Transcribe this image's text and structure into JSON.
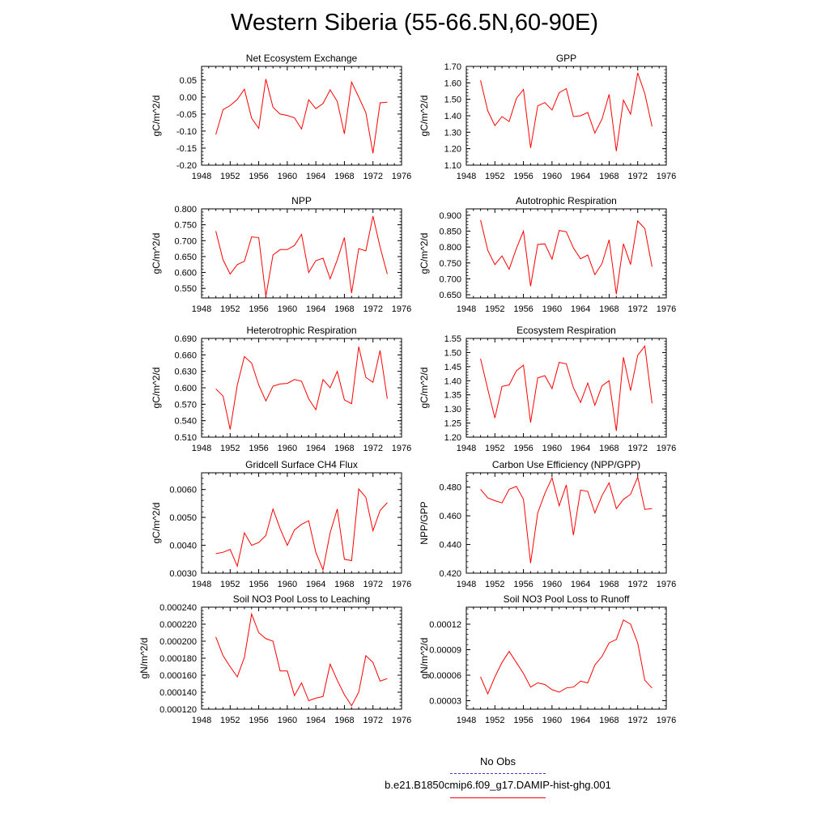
{
  "figure": {
    "title": "Western Siberia (55-66.5N,60-90E)"
  },
  "legend": {
    "entries": [
      {
        "label": "No Obs",
        "color": "#3a3ad0",
        "style": "dashed"
      },
      {
        "label": "b.e21.B1850cmip6.f09_g17.DAMIP-hist-ghg.001",
        "color": "#ff0000",
        "style": "solid"
      }
    ]
  },
  "chart_data": [
    {
      "type": "line",
      "title": "Net Ecosystem Exchange",
      "ylabel": "gC/m^2/d",
      "xlim": [
        1948,
        1976
      ],
      "xticks": [
        "1948",
        "1952",
        "1956",
        "1960",
        "1964",
        "1968",
        "1972",
        "1976"
      ],
      "ylim": [
        -0.2,
        0.09
      ],
      "yticks": [
        "-0.20",
        "-0.15",
        "-0.10",
        "-0.05",
        "0.00",
        "0.05"
      ],
      "series": [
        {
          "color": "#ff0000",
          "x": [
            1950,
            1951,
            1952,
            1953,
            1954,
            1955,
            1956,
            1957,
            1958,
            1959,
            1960,
            1961,
            1962,
            1963,
            1964,
            1965,
            1966,
            1967,
            1968,
            1969,
            1970,
            1971,
            1972,
            1973,
            1974
          ],
          "y": [
            -0.11,
            -0.037,
            -0.025,
            -0.007,
            0.023,
            -0.062,
            -0.092,
            0.053,
            -0.03,
            -0.05,
            -0.054,
            -0.061,
            -0.094,
            -0.008,
            -0.034,
            -0.019,
            0.021,
            -0.013,
            -0.108,
            0.044,
            0.0,
            -0.046,
            -0.165,
            -0.017,
            -0.015
          ]
        }
      ]
    },
    {
      "type": "line",
      "title": "GPP",
      "ylabel": "gC/m^2/d",
      "xlim": [
        1948,
        1976
      ],
      "xticks": [
        "1948",
        "1952",
        "1956",
        "1960",
        "1964",
        "1968",
        "1972",
        "1976"
      ],
      "ylim": [
        1.1,
        1.7
      ],
      "yticks": [
        "1.10",
        "1.20",
        "1.30",
        "1.40",
        "1.50",
        "1.60",
        "1.70"
      ],
      "series": [
        {
          "color": "#ff0000",
          "x": [
            1950,
            1951,
            1952,
            1953,
            1954,
            1955,
            1956,
            1957,
            1958,
            1959,
            1960,
            1961,
            1962,
            1963,
            1964,
            1965,
            1966,
            1967,
            1968,
            1969,
            1970,
            1971,
            1972,
            1973,
            1974
          ],
          "y": [
            1.615,
            1.43,
            1.34,
            1.395,
            1.365,
            1.505,
            1.56,
            1.205,
            1.46,
            1.48,
            1.435,
            1.54,
            1.565,
            1.395,
            1.4,
            1.42,
            1.295,
            1.38,
            1.53,
            1.185,
            1.495,
            1.41,
            1.66,
            1.535,
            1.335
          ]
        }
      ]
    },
    {
      "type": "line",
      "title": "NPP",
      "ylabel": "gC/m^2/d",
      "xlim": [
        1948,
        1976
      ],
      "xticks": [
        "1948",
        "1952",
        "1956",
        "1960",
        "1964",
        "1968",
        "1972",
        "1976"
      ],
      "ylim": [
        0.52,
        0.8
      ],
      "yticks": [
        "0.550",
        "0.600",
        "0.650",
        "0.700",
        "0.750",
        "0.800"
      ],
      "series": [
        {
          "color": "#ff0000",
          "x": [
            1950,
            1951,
            1952,
            1953,
            1954,
            1955,
            1956,
            1957,
            1958,
            1959,
            1960,
            1961,
            1962,
            1963,
            1964,
            1965,
            1966,
            1967,
            1968,
            1969,
            1970,
            1971,
            1972,
            1973,
            1974
          ],
          "y": [
            0.73,
            0.64,
            0.595,
            0.625,
            0.635,
            0.712,
            0.71,
            0.525,
            0.655,
            0.672,
            0.672,
            0.685,
            0.72,
            0.6,
            0.637,
            0.645,
            0.58,
            0.64,
            0.71,
            0.535,
            0.675,
            0.668,
            0.777,
            0.68,
            0.595
          ]
        }
      ]
    },
    {
      "type": "line",
      "title": "Autotrophic Respiration",
      "ylabel": "gC/m^2/d",
      "xlim": [
        1948,
        1976
      ],
      "xticks": [
        "1948",
        "1952",
        "1956",
        "1960",
        "1964",
        "1968",
        "1972",
        "1976"
      ],
      "ylim": [
        0.64,
        0.92
      ],
      "yticks": [
        "0.650",
        "0.700",
        "0.750",
        "0.800",
        "0.850",
        "0.900"
      ],
      "series": [
        {
          "color": "#ff0000",
          "x": [
            1950,
            1951,
            1952,
            1953,
            1954,
            1955,
            1956,
            1957,
            1958,
            1959,
            1960,
            1961,
            1962,
            1963,
            1964,
            1965,
            1966,
            1967,
            1968,
            1969,
            1970,
            1971,
            1972,
            1973,
            1974
          ],
          "y": [
            0.885,
            0.79,
            0.745,
            0.772,
            0.73,
            0.795,
            0.85,
            0.677,
            0.808,
            0.81,
            0.762,
            0.852,
            0.848,
            0.797,
            0.763,
            0.775,
            0.713,
            0.748,
            0.823,
            0.652,
            0.81,
            0.745,
            0.882,
            0.858,
            0.738
          ]
        }
      ]
    },
    {
      "type": "line",
      "title": "Heterotrophic Respiration",
      "ylabel": "gC/m^2/d",
      "xlim": [
        1948,
        1976
      ],
      "xticks": [
        "1948",
        "1952",
        "1956",
        "1960",
        "1964",
        "1968",
        "1972",
        "1976"
      ],
      "ylim": [
        0.51,
        0.69
      ],
      "yticks": [
        "0.510",
        "0.540",
        "0.570",
        "0.600",
        "0.630",
        "0.660",
        "0.690"
      ],
      "series": [
        {
          "color": "#ff0000",
          "x": [
            1950,
            1951,
            1952,
            1953,
            1954,
            1955,
            1956,
            1957,
            1958,
            1959,
            1960,
            1961,
            1962,
            1963,
            1964,
            1965,
            1966,
            1967,
            1968,
            1969,
            1970,
            1971,
            1972,
            1973,
            1974
          ],
          "y": [
            0.598,
            0.585,
            0.524,
            0.605,
            0.657,
            0.645,
            0.605,
            0.576,
            0.603,
            0.607,
            0.608,
            0.615,
            0.612,
            0.58,
            0.56,
            0.615,
            0.6,
            0.63,
            0.578,
            0.571,
            0.675,
            0.619,
            0.61,
            0.668,
            0.58
          ]
        }
      ]
    },
    {
      "type": "line",
      "title": "Ecosystem Respiration",
      "ylabel": "gC/m^2/d",
      "xlim": [
        1948,
        1976
      ],
      "xticks": [
        "1948",
        "1952",
        "1956",
        "1960",
        "1964",
        "1968",
        "1972",
        "1976"
      ],
      "ylim": [
        1.2,
        1.55
      ],
      "yticks": [
        "1.20",
        "1.25",
        "1.30",
        "1.35",
        "1.40",
        "1.45",
        "1.50",
        "1.55"
      ],
      "series": [
        {
          "color": "#ff0000",
          "x": [
            1950,
            1951,
            1952,
            1953,
            1954,
            1955,
            1956,
            1957,
            1958,
            1959,
            1960,
            1961,
            1962,
            1963,
            1964,
            1965,
            1966,
            1967,
            1968,
            1969,
            1970,
            1971,
            1972,
            1973,
            1974
          ],
          "y": [
            1.478,
            1.37,
            1.268,
            1.38,
            1.385,
            1.435,
            1.455,
            1.252,
            1.41,
            1.418,
            1.372,
            1.465,
            1.46,
            1.375,
            1.323,
            1.392,
            1.313,
            1.382,
            1.4,
            1.222,
            1.483,
            1.365,
            1.49,
            1.523,
            1.32
          ]
        }
      ]
    },
    {
      "type": "line",
      "title": "Gridcell Surface CH4 Flux",
      "ylabel": "gC/m^2/d",
      "xlim": [
        1948,
        1976
      ],
      "xticks": [
        "1948",
        "1952",
        "1956",
        "1960",
        "1964",
        "1968",
        "1972",
        "1976"
      ],
      "ylim": [
        0.003,
        0.0066
      ],
      "yticks": [
        "0.0030",
        "0.0040",
        "0.0050",
        "0.0060"
      ],
      "series": [
        {
          "color": "#ff0000",
          "x": [
            1950,
            1951,
            1952,
            1953,
            1954,
            1955,
            1956,
            1957,
            1958,
            1959,
            1960,
            1961,
            1962,
            1963,
            1964,
            1965,
            1966,
            1967,
            1968,
            1969,
            1970,
            1971,
            1972,
            1973,
            1974
          ],
          "y": [
            0.0037,
            0.00375,
            0.00385,
            0.00325,
            0.00445,
            0.004,
            0.0041,
            0.00435,
            0.0053,
            0.0046,
            0.004,
            0.00455,
            0.00475,
            0.00488,
            0.00375,
            0.00312,
            0.00445,
            0.0053,
            0.0035,
            0.00345,
            0.00602,
            0.00572,
            0.00452,
            0.00525,
            0.00553
          ]
        }
      ]
    },
    {
      "type": "line",
      "title": "Carbon Use Efficiency (NPP/GPP)",
      "ylabel": "NPP/GPP",
      "xlim": [
        1948,
        1976
      ],
      "xticks": [
        "1948",
        "1952",
        "1956",
        "1960",
        "1964",
        "1968",
        "1972",
        "1976"
      ],
      "ylim": [
        0.42,
        0.49
      ],
      "yticks": [
        "0.420",
        "0.440",
        "0.460",
        "0.480"
      ],
      "series": [
        {
          "color": "#ff0000",
          "x": [
            1950,
            1951,
            1952,
            1953,
            1954,
            1955,
            1956,
            1957,
            1958,
            1959,
            1960,
            1961,
            1962,
            1963,
            1964,
            1965,
            1966,
            1967,
            1968,
            1969,
            1970,
            1971,
            1972,
            1973,
            1974
          ],
          "y": [
            0.4785,
            0.4725,
            0.4705,
            0.469,
            0.4785,
            0.4805,
            0.4715,
            0.427,
            0.462,
            0.4755,
            0.4865,
            0.467,
            0.4815,
            0.4465,
            0.478,
            0.477,
            0.462,
            0.474,
            0.483,
            0.465,
            0.4715,
            0.475,
            0.487,
            0.4645,
            0.465
          ]
        }
      ]
    },
    {
      "type": "line",
      "title": "Soil NO3 Pool Loss to Leaching",
      "ylabel": "gN/m^2/d",
      "xlim": [
        1948,
        1976
      ],
      "xticks": [
        "1948",
        "1952",
        "1956",
        "1960",
        "1964",
        "1968",
        "1972",
        "1976"
      ],
      "ylim": [
        0.00012,
        0.00024
      ],
      "yticks": [
        "0.000120",
        "0.000140",
        "0.000160",
        "0.000180",
        "0.000200",
        "0.000220",
        "0.000240"
      ],
      "series": [
        {
          "color": "#ff0000",
          "x": [
            1950,
            1951,
            1952,
            1953,
            1954,
            1955,
            1956,
            1957,
            1958,
            1959,
            1960,
            1961,
            1962,
            1963,
            1964,
            1965,
            1966,
            1967,
            1968,
            1969,
            1970,
            1971,
            1972,
            1973,
            1974
          ],
          "y": [
            0.000205,
            0.000183,
            0.00017,
            0.000158,
            0.000181,
            0.000232,
            0.00021,
            0.000203,
            0.0002,
            0.000165,
            0.000165,
            0.000136,
            0.000151,
            0.00013,
            0.000133,
            0.000135,
            0.000173,
            0.000154,
            0.000137,
            0.000124,
            0.00014,
            0.000183,
            0.000175,
            0.000153,
            0.000156
          ]
        }
      ]
    },
    {
      "type": "line",
      "title": "Soil NO3 Pool Loss to Runoff",
      "ylabel": "gN/m^2/d",
      "xlim": [
        1948,
        1976
      ],
      "xticks": [
        "1948",
        "1952",
        "1956",
        "1960",
        "1964",
        "1968",
        "1972",
        "1976"
      ],
      "ylim": [
        2e-05,
        0.00014
      ],
      "yticks": [
        "0.00003",
        "0.00006",
        "0.00009",
        "0.00012"
      ],
      "series": [
        {
          "color": "#ff0000",
          "x": [
            1950,
            1951,
            1952,
            1953,
            1954,
            1955,
            1956,
            1957,
            1958,
            1959,
            1960,
            1961,
            1962,
            1963,
            1964,
            1965,
            1966,
            1967,
            1968,
            1969,
            1970,
            1971,
            1972,
            1973,
            1974
          ],
          "y": [
            5.8e-05,
            3.8e-05,
            5.8e-05,
            7.5e-05,
            8.8e-05,
            7.5e-05,
            6.2e-05,
            4.6e-05,
            5.1e-05,
            4.9e-05,
            4.3e-05,
            4e-05,
            4.5e-05,
            4.6e-05,
            5.3e-05,
            5.1e-05,
            7.2e-05,
            8.2e-05,
            9.8e-05,
            0.000102,
            0.000125,
            0.00012,
            9.8e-05,
            5.4e-05,
            4.5e-05
          ]
        }
      ]
    }
  ]
}
